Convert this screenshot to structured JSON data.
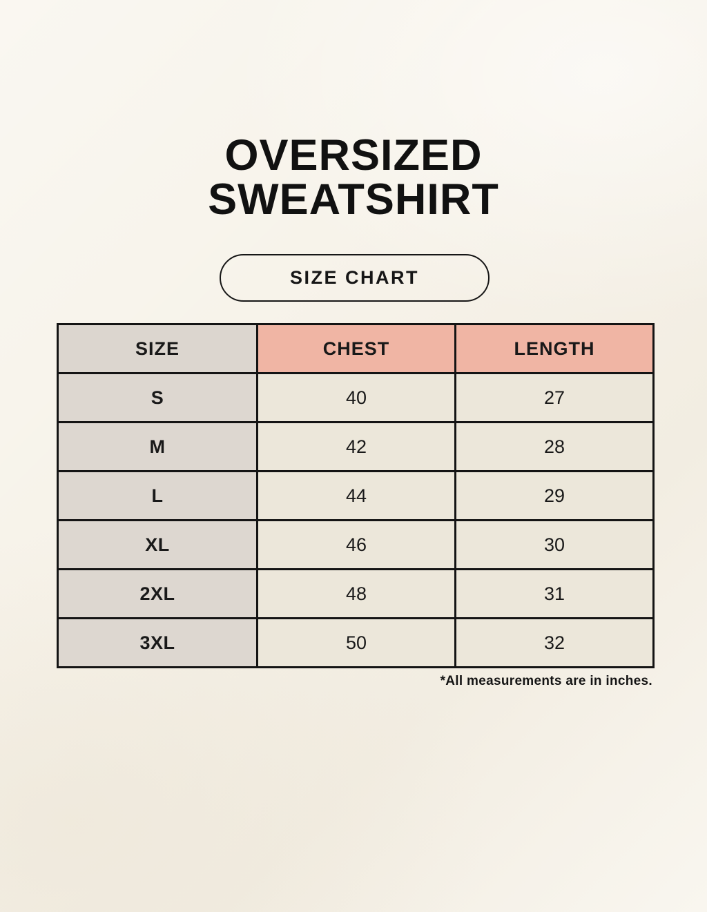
{
  "title": {
    "line1": "OVERSIZED",
    "line2": "SWEATSHIRT"
  },
  "badge": {
    "label": "SIZE CHART"
  },
  "table": {
    "columns": [
      "SIZE",
      "CHEST",
      "LENGTH"
    ],
    "rows": [
      {
        "size": "S",
        "chest": "40",
        "length": "27"
      },
      {
        "size": "M",
        "chest": "42",
        "length": "28"
      },
      {
        "size": "L",
        "chest": "44",
        "length": "29"
      },
      {
        "size": "XL",
        "chest": "46",
        "length": "30"
      },
      {
        "size": "2XL",
        "chest": "48",
        "length": "31"
      },
      {
        "size": "3XL",
        "chest": "50",
        "length": "32"
      }
    ],
    "units_note": "*All measurements are in inches."
  },
  "colors": {
    "background": "#f7f3ea",
    "size_header_bg": "#dcd6cf",
    "measure_header_bg": "#f0b5a4",
    "size_cell_bg": "#ddd7d0",
    "data_cell_bg": "#ece7da",
    "border": "#141414",
    "text": "#191919"
  }
}
